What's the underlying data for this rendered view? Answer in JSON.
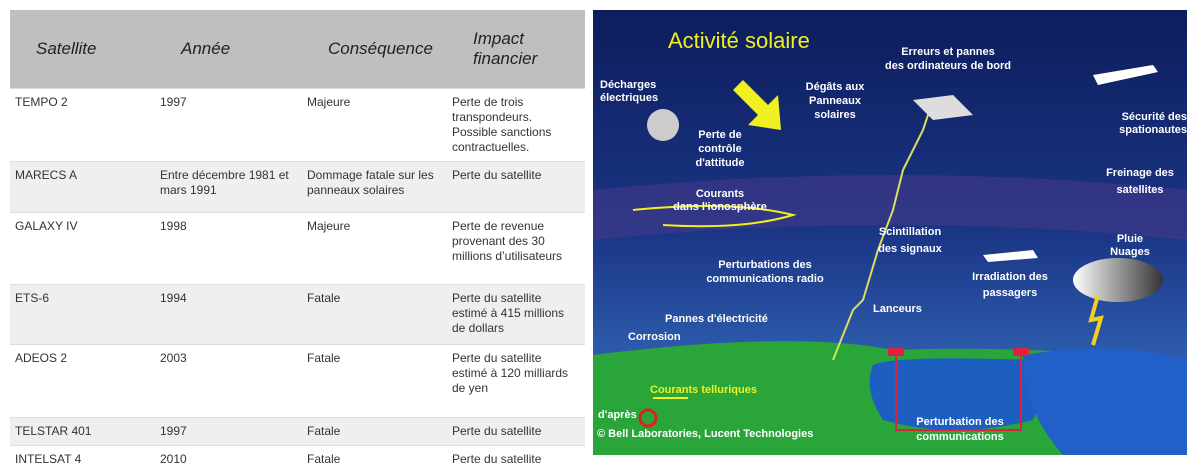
{
  "table": {
    "header": [
      "Satellite",
      "Année",
      "Conséquence",
      "Impact financier"
    ],
    "rows": [
      [
        "TEMPO 2",
        "1997",
        "Majeure",
        "Perte de trois transpondeurs. Possible sanctions contractuelles."
      ],
      [
        "MARECS A",
        "Entre décembre 1981 et mars 1991",
        "Dommage fatale sur les panneaux solaires",
        "Perte du satellite"
      ],
      [
        "GALAXY IV",
        "1998",
        "Majeure",
        "Perte de revenue provenant des 30 millions d’utilisateurs"
      ],
      [
        "ETS-6",
        "1994",
        "Fatale",
        "Perte du satellite estimé à 415 millions de dollars"
      ],
      [
        "ADEOS 2",
        "2003",
        "Fatale",
        "Perte du satellite estimé à 120 milliards de yen"
      ],
      [
        "TELSTAR 401",
        "1997",
        "Fatale",
        "Perte du satellite"
      ],
      [
        "INTELSAT 4",
        "2010",
        "Fatale",
        "Perte du satellite"
      ]
    ]
  },
  "diagram": {
    "title": "Activité solaire",
    "labels": [
      [
        "Erreurs et pannes",
        "des ordinateurs de bord"
      ],
      [
        "Décharges",
        "électriques"
      ],
      [
        "Dégâts aux",
        "Panneaux",
        "solaires"
      ],
      [
        "Perte de",
        "contrôle",
        "d'attitude"
      ],
      [
        "Sécurité des",
        "spationautes"
      ],
      [
        "Freinage des",
        "satellites"
      ],
      [
        "Courants",
        "dans l'ionosphère"
      ],
      [
        "Pluie",
        "Nuages"
      ],
      [
        "Scintillation",
        "des signaux"
      ],
      [
        "Perturbations des",
        "communications radio"
      ],
      [
        "Irradiation des",
        "passagers"
      ],
      [
        "Lanceurs"
      ],
      [
        "Pannes d'électricité"
      ],
      [
        "Corrosion"
      ],
      [
        "Courants telluriques"
      ],
      [
        "d'après"
      ],
      [
        "© Bell Laboratories, Lucent Technologies"
      ],
      [
        "Perturbation des",
        "communications"
      ]
    ]
  }
}
